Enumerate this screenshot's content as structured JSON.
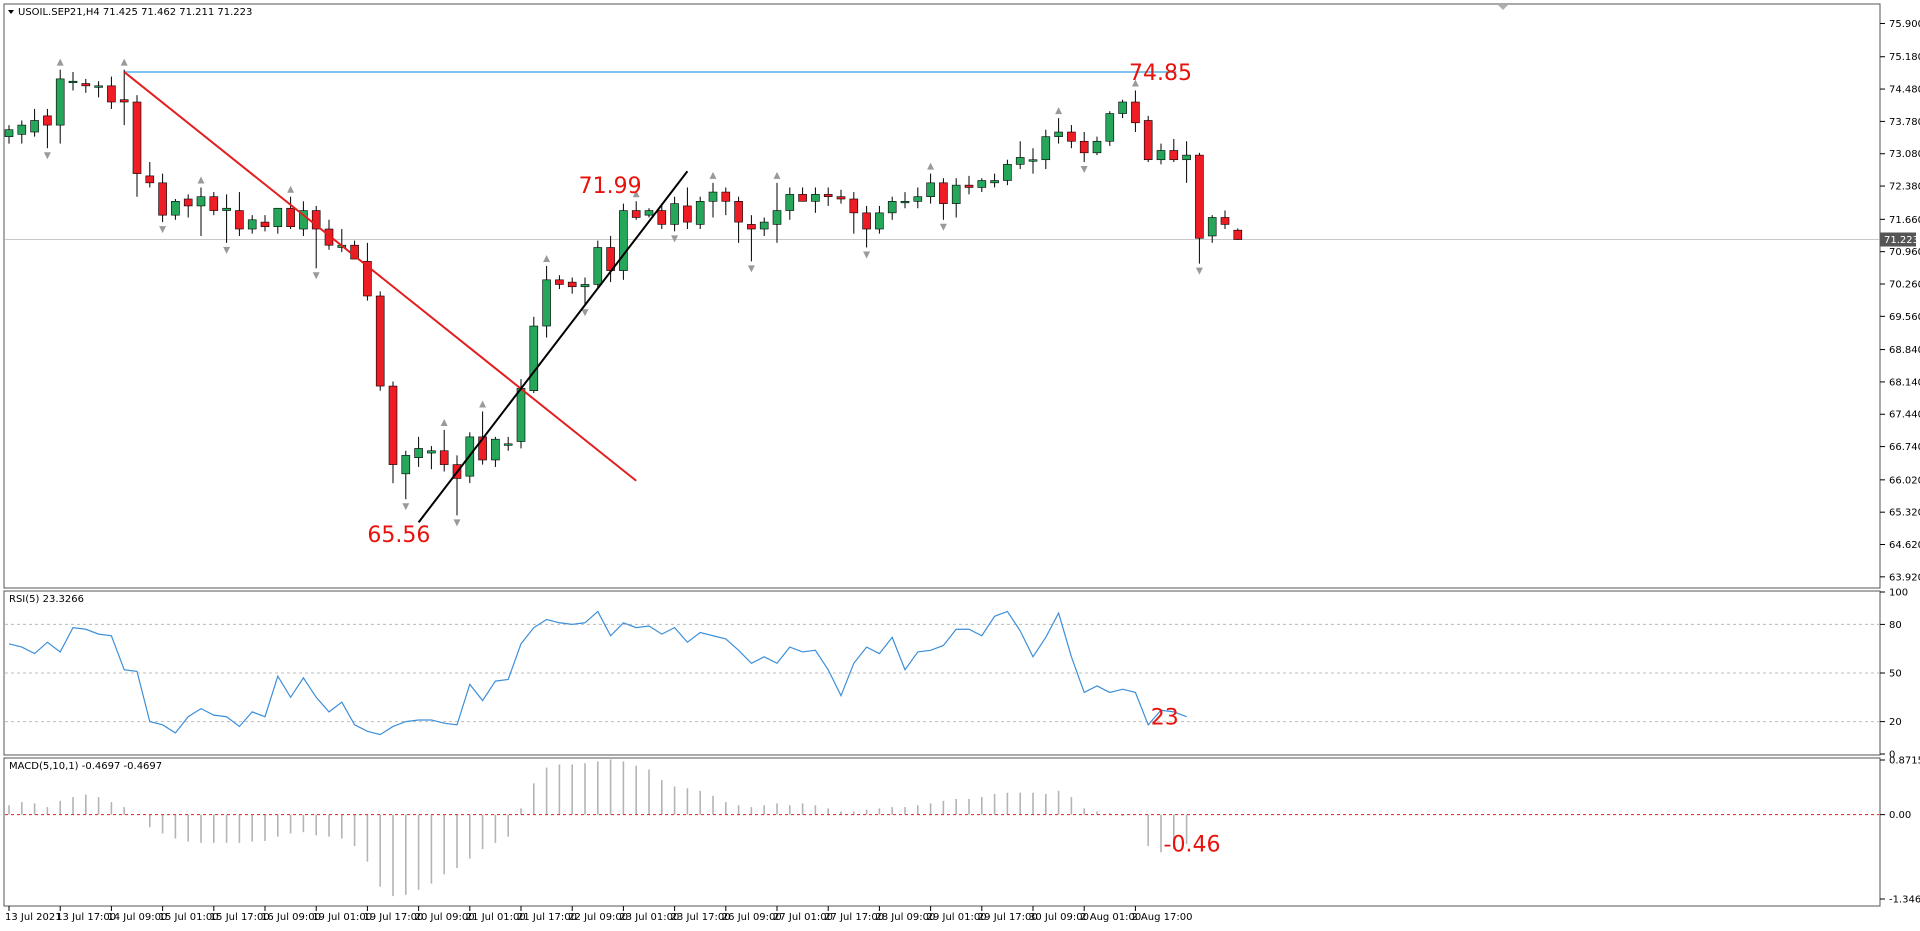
{
  "colors": {
    "bull": "#26a65b",
    "bear": "#ee1c24",
    "wick": "#000000",
    "resistance": "#7ec4ef",
    "trend_red": "#e31e1e",
    "trend_black": "#000000",
    "rsi_line": "#3d8fd9",
    "macd_hist": "#b4b4b4",
    "macd_signal": "#e02020",
    "annotation": "#e8120c",
    "fractal": "#9a9a9a"
  },
  "main": {
    "title": "USOIL.SEP21,H4  71.425 71.462 71.211 71.223",
    "current_price_label": "71.223",
    "current_price": 71.223,
    "resistance_level": 74.85,
    "y_range": [
      63.7,
      76.3
    ],
    "y_ticks": [
      "75.900",
      "75.180",
      "74.480",
      "73.780",
      "73.080",
      "72.380",
      "71.660",
      "70.960",
      "70.260",
      "69.560",
      "68.840",
      "68.140",
      "67.440",
      "66.740",
      "66.020",
      "65.320",
      "64.620",
      "63.920"
    ],
    "annotations": [
      {
        "text": "74.85",
        "bar": 87.5,
        "price": 74.85
      },
      {
        "text": "71.99",
        "bar": 44.5,
        "price": 72.4
      },
      {
        "text": "65.56",
        "bar": 28.0,
        "price": 64.85
      }
    ],
    "trendlines": [
      {
        "name": "descending-trendline",
        "color": "trend_red",
        "from": {
          "bar": 9,
          "price": 74.85
        },
        "to": {
          "bar": 49,
          "price": 66.0
        }
      },
      {
        "name": "ascending-trendline",
        "color": "trend_black",
        "from": {
          "bar": 32,
          "price": 65.1
        },
        "to": {
          "bar": 53,
          "price": 72.7
        }
      }
    ]
  },
  "rsi": {
    "title": "RSI(5) 23.3266",
    "y_range": [
      0,
      100
    ],
    "y_ticks": [
      "100",
      "80",
      "50",
      "20",
      "0"
    ],
    "levels": [
      80,
      50,
      20
    ],
    "annotation": "23"
  },
  "macd": {
    "title": "MACD(5,10,1) -0.4697 -0.4697",
    "y_range": [
      -1.3461,
      0.8715
    ],
    "y_ticks": [
      "0.8715",
      "0.00",
      "-1.3461"
    ],
    "annotation": "-0.46"
  },
  "x_labels": [
    {
      "bar": 0,
      "text": "13 Jul 2021"
    },
    {
      "bar": 4,
      "text": "13 Jul 17:00"
    },
    {
      "bar": 8,
      "text": "14 Jul 09:00"
    },
    {
      "bar": 12,
      "text": "15 Jul 01:00"
    },
    {
      "bar": 16,
      "text": "15 Jul 17:00"
    },
    {
      "bar": 20,
      "text": "16 Jul 09:00"
    },
    {
      "bar": 24,
      "text": "19 Jul 01:00"
    },
    {
      "bar": 28,
      "text": "19 Jul 17:00"
    },
    {
      "bar": 32,
      "text": "20 Jul 09:00"
    },
    {
      "bar": 36,
      "text": "21 Jul 01:00"
    },
    {
      "bar": 40,
      "text": "21 Jul 17:00"
    },
    {
      "bar": 44,
      "text": "22 Jul 09:00"
    },
    {
      "bar": 48,
      "text": "23 Jul 01:00"
    },
    {
      "bar": 52,
      "text": "23 Jul 17:00"
    },
    {
      "bar": 56,
      "text": "26 Jul 09:00"
    },
    {
      "bar": 60,
      "text": "27 Jul 01:00"
    },
    {
      "bar": 64,
      "text": "27 Jul 17:00"
    },
    {
      "bar": 68,
      "text": "28 Jul 09:00"
    },
    {
      "bar": 72,
      "text": "29 Jul 01:00"
    },
    {
      "bar": 76,
      "text": "29 Jul 17:00"
    },
    {
      "bar": 80,
      "text": "30 Jul 09:00"
    },
    {
      "bar": 84,
      "text": "2 Aug 01:00"
    },
    {
      "bar": 88,
      "text": "2 Aug 17:00"
    }
  ],
  "chart_data": [
    {
      "type": "candlestick",
      "title": "USOIL.SEP21,H4  71.425 71.462 71.211 71.223",
      "x_labels": [
        "13 Jul 2021",
        "13 Jul 17:00",
        "14 Jul 09:00",
        "15 Jul 01:00",
        "15 Jul 17:00",
        "16 Jul 09:00",
        "19 Jul 01:00",
        "19 Jul 17:00",
        "20 Jul 09:00",
        "21 Jul 01:00",
        "21 Jul 17:00",
        "22 Jul 09:00",
        "23 Jul 01:00",
        "23 Jul 17:00",
        "26 Jul 09:00",
        "27 Jul 01:00",
        "27 Jul 17:00",
        "28 Jul 09:00",
        "29 Jul 01:00",
        "29 Jul 17:00",
        "30 Jul 09:00",
        "2 Aug 01:00",
        "2 Aug 17:00"
      ],
      "ylim": [
        63.92,
        75.9
      ],
      "annotations": [
        "74.85",
        "71.99",
        "65.56"
      ],
      "candles": [
        {
          "o": 73.45,
          "h": 73.7,
          "l": 73.3,
          "c": 73.6
        },
        {
          "o": 73.5,
          "h": 73.8,
          "l": 73.3,
          "c": 73.7
        },
        {
          "o": 73.55,
          "h": 74.05,
          "l": 73.45,
          "c": 73.8
        },
        {
          "o": 73.9,
          "h": 74.05,
          "l": 73.2,
          "c": 73.7
        },
        {
          "o": 73.7,
          "h": 74.9,
          "l": 73.3,
          "c": 74.7
        },
        {
          "o": 74.65,
          "h": 74.85,
          "l": 74.45,
          "c": 74.65
        },
        {
          "o": 74.6,
          "h": 74.7,
          "l": 74.4,
          "c": 74.55
        },
        {
          "o": 74.55,
          "h": 74.65,
          "l": 74.3,
          "c": 74.55
        },
        {
          "o": 74.55,
          "h": 74.75,
          "l": 74.05,
          "c": 74.2
        },
        {
          "o": 74.25,
          "h": 74.9,
          "l": 73.7,
          "c": 74.2
        },
        {
          "o": 74.2,
          "h": 74.35,
          "l": 72.15,
          "c": 72.65
        },
        {
          "o": 72.6,
          "h": 72.9,
          "l": 72.35,
          "c": 72.45
        },
        {
          "o": 72.45,
          "h": 72.65,
          "l": 71.6,
          "c": 71.75
        },
        {
          "o": 71.75,
          "h": 72.1,
          "l": 71.65,
          "c": 72.05
        },
        {
          "o": 72.1,
          "h": 72.2,
          "l": 71.7,
          "c": 71.95
        },
        {
          "o": 71.95,
          "h": 72.35,
          "l": 71.3,
          "c": 72.15
        },
        {
          "o": 72.15,
          "h": 72.25,
          "l": 71.75,
          "c": 71.85
        },
        {
          "o": 71.85,
          "h": 72.2,
          "l": 71.15,
          "c": 71.9
        },
        {
          "o": 71.85,
          "h": 72.25,
          "l": 71.3,
          "c": 71.45
        },
        {
          "o": 71.45,
          "h": 71.75,
          "l": 71.35,
          "c": 71.65
        },
        {
          "o": 71.6,
          "h": 71.75,
          "l": 71.4,
          "c": 71.5
        },
        {
          "o": 71.5,
          "h": 71.9,
          "l": 71.35,
          "c": 71.9
        },
        {
          "o": 71.9,
          "h": 72.15,
          "l": 71.45,
          "c": 71.5
        },
        {
          "o": 71.45,
          "h": 72.05,
          "l": 71.3,
          "c": 71.85
        },
        {
          "o": 71.85,
          "h": 71.95,
          "l": 70.6,
          "c": 71.45
        },
        {
          "o": 71.45,
          "h": 71.65,
          "l": 71.0,
          "c": 71.1
        },
        {
          "o": 71.05,
          "h": 71.45,
          "l": 70.95,
          "c": 71.1
        },
        {
          "o": 71.1,
          "h": 71.2,
          "l": 70.9,
          "c": 70.8
        },
        {
          "o": 70.75,
          "h": 71.15,
          "l": 69.9,
          "c": 70.0
        },
        {
          "o": 70.0,
          "h": 70.1,
          "l": 67.95,
          "c": 68.05
        },
        {
          "o": 68.05,
          "h": 68.15,
          "l": 65.95,
          "c": 66.35
        },
        {
          "o": 66.15,
          "h": 66.65,
          "l": 65.6,
          "c": 66.55
        },
        {
          "o": 66.5,
          "h": 66.95,
          "l": 66.3,
          "c": 66.7
        },
        {
          "o": 66.6,
          "h": 66.75,
          "l": 66.25,
          "c": 66.65
        },
        {
          "o": 66.65,
          "h": 67.1,
          "l": 66.2,
          "c": 66.35
        },
        {
          "o": 66.35,
          "h": 66.55,
          "l": 65.25,
          "c": 66.05
        },
        {
          "o": 66.1,
          "h": 67.05,
          "l": 65.95,
          "c": 66.95
        },
        {
          "o": 66.95,
          "h": 67.5,
          "l": 66.35,
          "c": 66.45
        },
        {
          "o": 66.45,
          "h": 66.95,
          "l": 66.3,
          "c": 66.9
        },
        {
          "o": 66.8,
          "h": 66.95,
          "l": 66.65,
          "c": 66.8
        },
        {
          "o": 66.85,
          "h": 68.2,
          "l": 66.7,
          "c": 68.0
        },
        {
          "o": 67.95,
          "h": 69.55,
          "l": 67.9,
          "c": 69.35
        },
        {
          "o": 69.35,
          "h": 70.65,
          "l": 69.1,
          "c": 70.35
        },
        {
          "o": 70.35,
          "h": 70.45,
          "l": 70.15,
          "c": 70.25
        },
        {
          "o": 70.3,
          "h": 70.4,
          "l": 70.05,
          "c": 70.2
        },
        {
          "o": 70.2,
          "h": 70.4,
          "l": 69.8,
          "c": 70.25
        },
        {
          "o": 70.25,
          "h": 71.2,
          "l": 70.15,
          "c": 71.05
        },
        {
          "o": 71.05,
          "h": 71.3,
          "l": 70.3,
          "c": 70.55
        },
        {
          "o": 70.55,
          "h": 72.0,
          "l": 70.35,
          "c": 71.85
        },
        {
          "o": 71.85,
          "h": 72.05,
          "l": 71.65,
          "c": 71.7
        },
        {
          "o": 71.75,
          "h": 71.9,
          "l": 71.7,
          "c": 71.85
        },
        {
          "o": 71.85,
          "h": 72.0,
          "l": 71.45,
          "c": 71.55
        },
        {
          "o": 71.55,
          "h": 72.15,
          "l": 71.4,
          "c": 72.0
        },
        {
          "o": 71.95,
          "h": 72.35,
          "l": 71.45,
          "c": 71.6
        },
        {
          "o": 71.55,
          "h": 72.15,
          "l": 71.45,
          "c": 72.05
        },
        {
          "o": 72.05,
          "h": 72.45,
          "l": 71.7,
          "c": 72.25
        },
        {
          "o": 72.25,
          "h": 72.35,
          "l": 71.75,
          "c": 72.05
        },
        {
          "o": 72.05,
          "h": 72.15,
          "l": 71.15,
          "c": 71.6
        },
        {
          "o": 71.55,
          "h": 71.75,
          "l": 70.75,
          "c": 71.45
        },
        {
          "o": 71.45,
          "h": 71.7,
          "l": 71.3,
          "c": 71.6
        },
        {
          "o": 71.55,
          "h": 72.45,
          "l": 71.15,
          "c": 71.85
        },
        {
          "o": 71.85,
          "h": 72.35,
          "l": 71.65,
          "c": 72.2
        },
        {
          "o": 72.2,
          "h": 72.35,
          "l": 72.05,
          "c": 72.05
        },
        {
          "o": 72.05,
          "h": 72.35,
          "l": 71.8,
          "c": 72.2
        },
        {
          "o": 72.2,
          "h": 72.35,
          "l": 71.95,
          "c": 72.15
        },
        {
          "o": 72.15,
          "h": 72.3,
          "l": 72.0,
          "c": 72.1
        },
        {
          "o": 72.1,
          "h": 72.25,
          "l": 71.35,
          "c": 71.8
        },
        {
          "o": 71.8,
          "h": 71.95,
          "l": 71.05,
          "c": 71.45
        },
        {
          "o": 71.45,
          "h": 71.95,
          "l": 71.35,
          "c": 71.8
        },
        {
          "o": 71.8,
          "h": 72.15,
          "l": 71.65,
          "c": 72.05
        },
        {
          "o": 72.05,
          "h": 72.25,
          "l": 71.9,
          "c": 72.05
        },
        {
          "o": 72.05,
          "h": 72.35,
          "l": 71.9,
          "c": 72.15
        },
        {
          "o": 72.15,
          "h": 72.65,
          "l": 72.0,
          "c": 72.45
        },
        {
          "o": 72.45,
          "h": 72.55,
          "l": 71.65,
          "c": 72.0
        },
        {
          "o": 72.0,
          "h": 72.55,
          "l": 71.7,
          "c": 72.4
        },
        {
          "o": 72.4,
          "h": 72.6,
          "l": 72.2,
          "c": 72.35
        },
        {
          "o": 72.35,
          "h": 72.55,
          "l": 72.25,
          "c": 72.5
        },
        {
          "o": 72.45,
          "h": 72.65,
          "l": 72.35,
          "c": 72.5
        },
        {
          "o": 72.5,
          "h": 72.95,
          "l": 72.4,
          "c": 72.85
        },
        {
          "o": 72.85,
          "h": 73.35,
          "l": 72.75,
          "c": 73.0
        },
        {
          "o": 72.95,
          "h": 73.2,
          "l": 72.65,
          "c": 72.95
        },
        {
          "o": 72.95,
          "h": 73.6,
          "l": 72.75,
          "c": 73.45
        },
        {
          "o": 73.45,
          "h": 73.85,
          "l": 73.3,
          "c": 73.55
        },
        {
          "o": 73.55,
          "h": 73.7,
          "l": 73.2,
          "c": 73.35
        },
        {
          "o": 73.35,
          "h": 73.55,
          "l": 72.9,
          "c": 73.1
        },
        {
          "o": 73.1,
          "h": 73.45,
          "l": 73.05,
          "c": 73.35
        },
        {
          "o": 73.35,
          "h": 74.0,
          "l": 73.25,
          "c": 73.95
        },
        {
          "o": 73.95,
          "h": 74.25,
          "l": 73.85,
          "c": 74.2
        },
        {
          "o": 74.2,
          "h": 74.45,
          "l": 73.55,
          "c": 73.75
        },
        {
          "o": 73.8,
          "h": 73.9,
          "l": 72.9,
          "c": 72.95
        },
        {
          "o": 72.95,
          "h": 73.3,
          "l": 72.85,
          "c": 73.15
        },
        {
          "o": 73.15,
          "h": 73.4,
          "l": 72.9,
          "c": 72.95
        },
        {
          "o": 72.95,
          "h": 73.35,
          "l": 72.45,
          "c": 73.05
        },
        {
          "o": 73.05,
          "h": 73.1,
          "l": 70.7,
          "c": 71.25
        },
        {
          "o": 71.3,
          "h": 71.75,
          "l": 71.15,
          "c": 71.7
        },
        {
          "o": 71.7,
          "h": 71.85,
          "l": 71.45,
          "c": 71.55
        },
        {
          "o": 71.425,
          "h": 71.462,
          "l": 71.211,
          "c": 71.223
        }
      ]
    },
    {
      "type": "line",
      "title": "RSI(5) 23.3266",
      "ylim": [
        0,
        100
      ],
      "levels": [
        80,
        50,
        20
      ],
      "values": [
        68,
        66,
        62,
        69,
        63,
        78,
        77,
        74,
        73,
        52,
        51,
        20,
        18,
        13,
        23,
        28,
        24,
        23,
        17,
        26,
        23,
        48,
        35,
        47,
        35,
        26,
        32,
        18,
        14,
        12,
        17,
        20,
        21,
        21,
        19,
        18,
        43,
        33,
        45,
        46,
        68,
        78,
        83,
        81,
        80,
        81,
        88,
        73,
        81,
        78,
        79,
        74,
        78,
        69,
        75,
        73,
        71,
        64,
        56,
        60,
        56,
        66,
        63,
        64,
        52,
        36,
        56,
        66,
        62,
        72,
        52,
        63,
        64,
        67,
        77,
        77,
        73,
        85,
        88,
        76,
        60,
        72,
        87,
        60,
        38,
        42,
        38,
        40,
        38,
        18,
        27,
        26,
        23
      ]
    },
    {
      "type": "bar",
      "title": "MACD(5,10,1) -0.4697 -0.4697",
      "ylim": [
        -1.3461,
        0.8715
      ],
      "values": [
        0.15,
        0.2,
        0.18,
        0.12,
        0.22,
        0.28,
        0.32,
        0.28,
        0.2,
        0.12,
        0.0,
        -0.2,
        -0.3,
        -0.38,
        -0.43,
        -0.45,
        -0.45,
        -0.45,
        -0.45,
        -0.43,
        -0.42,
        -0.35,
        -0.3,
        -0.28,
        -0.33,
        -0.35,
        -0.38,
        -0.5,
        -0.75,
        -1.15,
        -1.3,
        -1.28,
        -1.2,
        -1.1,
        -0.95,
        -0.85,
        -0.7,
        -0.55,
        -0.45,
        -0.35,
        0.1,
        0.5,
        0.75,
        0.8,
        0.8,
        0.82,
        0.85,
        0.88,
        0.85,
        0.78,
        0.72,
        0.55,
        0.45,
        0.42,
        0.38,
        0.3,
        0.2,
        0.15,
        0.12,
        0.15,
        0.18,
        0.15,
        0.18,
        0.15,
        0.1,
        0.05,
        0.05,
        0.08,
        0.1,
        0.12,
        0.12,
        0.15,
        0.18,
        0.22,
        0.25,
        0.25,
        0.28,
        0.33,
        0.35,
        0.35,
        0.35,
        0.33,
        0.38,
        0.28,
        0.1,
        0.05,
        0.02,
        -0.02,
        0.0,
        -0.5,
        -0.6,
        -0.55,
        -0.47
      ]
    }
  ]
}
